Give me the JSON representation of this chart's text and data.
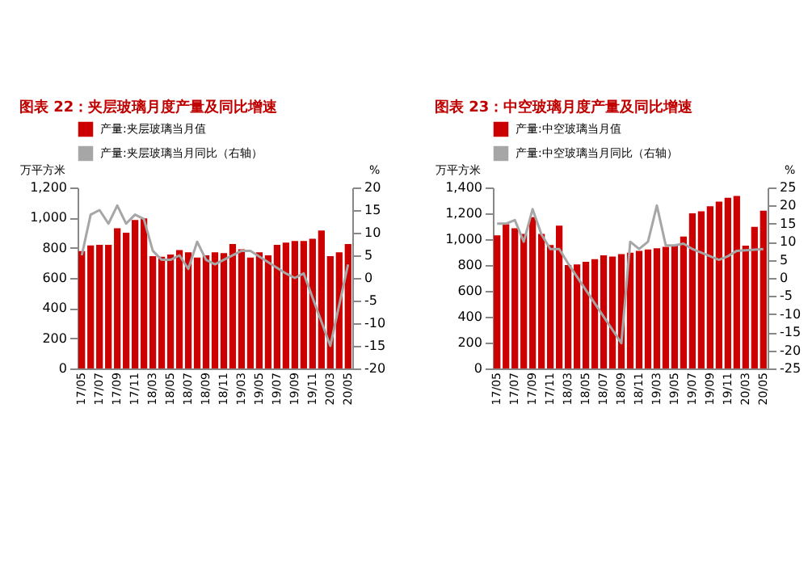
{
  "chart_data": [
    {
      "type": "bar",
      "title": "图表 22：夹层玻璃月度产量及同比增速",
      "ylabel": "万平方米",
      "y2label": "%",
      "categories": [
        "17/05",
        null,
        "17/07",
        null,
        "17/09",
        null,
        "17/11",
        null,
        "18/03",
        null,
        "18/05",
        null,
        "18/07",
        null,
        "18/09",
        null,
        "18/11",
        null,
        "19/03",
        null,
        "19/05",
        null,
        "19/07",
        null,
        "19/09",
        null,
        "19/11",
        null,
        "20/03",
        null,
        "20/05"
      ],
      "series": [
        {
          "name": "产量:夹层玻璃当月值",
          "color": "#cc0000",
          "values": [
            778,
            815,
            820,
            820,
            930,
            900,
            985,
            995,
            745,
            740,
            755,
            785,
            770,
            735,
            750,
            770,
            765,
            825,
            790,
            735,
            770,
            750,
            820,
            835,
            845,
            845,
            860,
            915,
            745,
            770,
            825
          ]
        },
        {
          "name": "产量:夹层玻璃当月同比（右轴）",
          "type": "line",
          "axis": "y2",
          "color": "#a6a6a6",
          "values": [
            5,
            14,
            15,
            12,
            16,
            12,
            14,
            13,
            6,
            4,
            4,
            5,
            2,
            8,
            4,
            3,
            null,
            null,
            6,
            6,
            null,
            null,
            null,
            1,
            0,
            1,
            null,
            null,
            -15,
            null,
            3
          ]
        }
      ],
      "ylim": [
        0,
        1200
      ],
      "yticks": [
        0,
        200,
        400,
        600,
        800,
        {
          "value": 1000,
          "label": "1,000"
        },
        {
          "value": 1200,
          "label": "1,200"
        }
      ],
      "y2lim": [
        -20,
        20
      ],
      "y2ticks": [
        -20,
        -15,
        -10,
        -5,
        0,
        5,
        10,
        15,
        20
      ],
      "legend": "top"
    },
    {
      "type": "bar",
      "title": "图表 23：中空玻璃月度产量及同比增速",
      "ylabel": "万平方米",
      "y2label": "%",
      "categories": [
        "17/05",
        null,
        "17/07",
        null,
        "17/09",
        null,
        "17/11",
        null,
        "18/03",
        null,
        "18/05",
        null,
        "18/07",
        null,
        "18/09",
        null,
        "18/11",
        null,
        "19/03",
        null,
        "19/05",
        null,
        "19/07",
        null,
        "19/09",
        null,
        "19/11",
        null,
        "20/03",
        null,
        "20/05"
      ],
      "series": [
        {
          "name": "产量:中空玻璃当月值",
          "color": "#cc0000",
          "values": [
            1030,
            1115,
            1085,
            1040,
            1170,
            1040,
            955,
            1105,
            800,
            805,
            825,
            845,
            875,
            865,
            885,
            895,
            910,
            920,
            930,
            940,
            955,
            1020,
            1200,
            1215,
            1255,
            1290,
            1320,
            1335,
            950,
            1095,
            1220
          ]
        },
        {
          "name": "产量:中空玻璃当月同比（右轴）",
          "type": "line",
          "axis": "y2",
          "color": "#a6a6a6",
          "values": [
            15,
            15,
            16,
            10,
            19,
            12,
            8,
            8,
            4,
            null,
            null,
            null,
            null,
            null,
            -18,
            10,
            8,
            10,
            20,
            9,
            9,
            9.5,
            8,
            7,
            6,
            5,
            6,
            7.5,
            null,
            null,
            8
          ]
        }
      ],
      "ylim": [
        0,
        1400
      ],
      "yticks": [
        0,
        200,
        400,
        600,
        800,
        {
          "value": 1000,
          "label": "1,000"
        },
        {
          "value": 1200,
          "label": "1,200"
        },
        {
          "value": 1400,
          "label": "1,400"
        }
      ],
      "y2lim": [
        -25,
        25
      ],
      "y2ticks": [
        -25,
        -20,
        -15,
        -10,
        -5,
        0,
        5,
        10,
        15,
        20,
        25
      ],
      "legend": "top"
    }
  ]
}
